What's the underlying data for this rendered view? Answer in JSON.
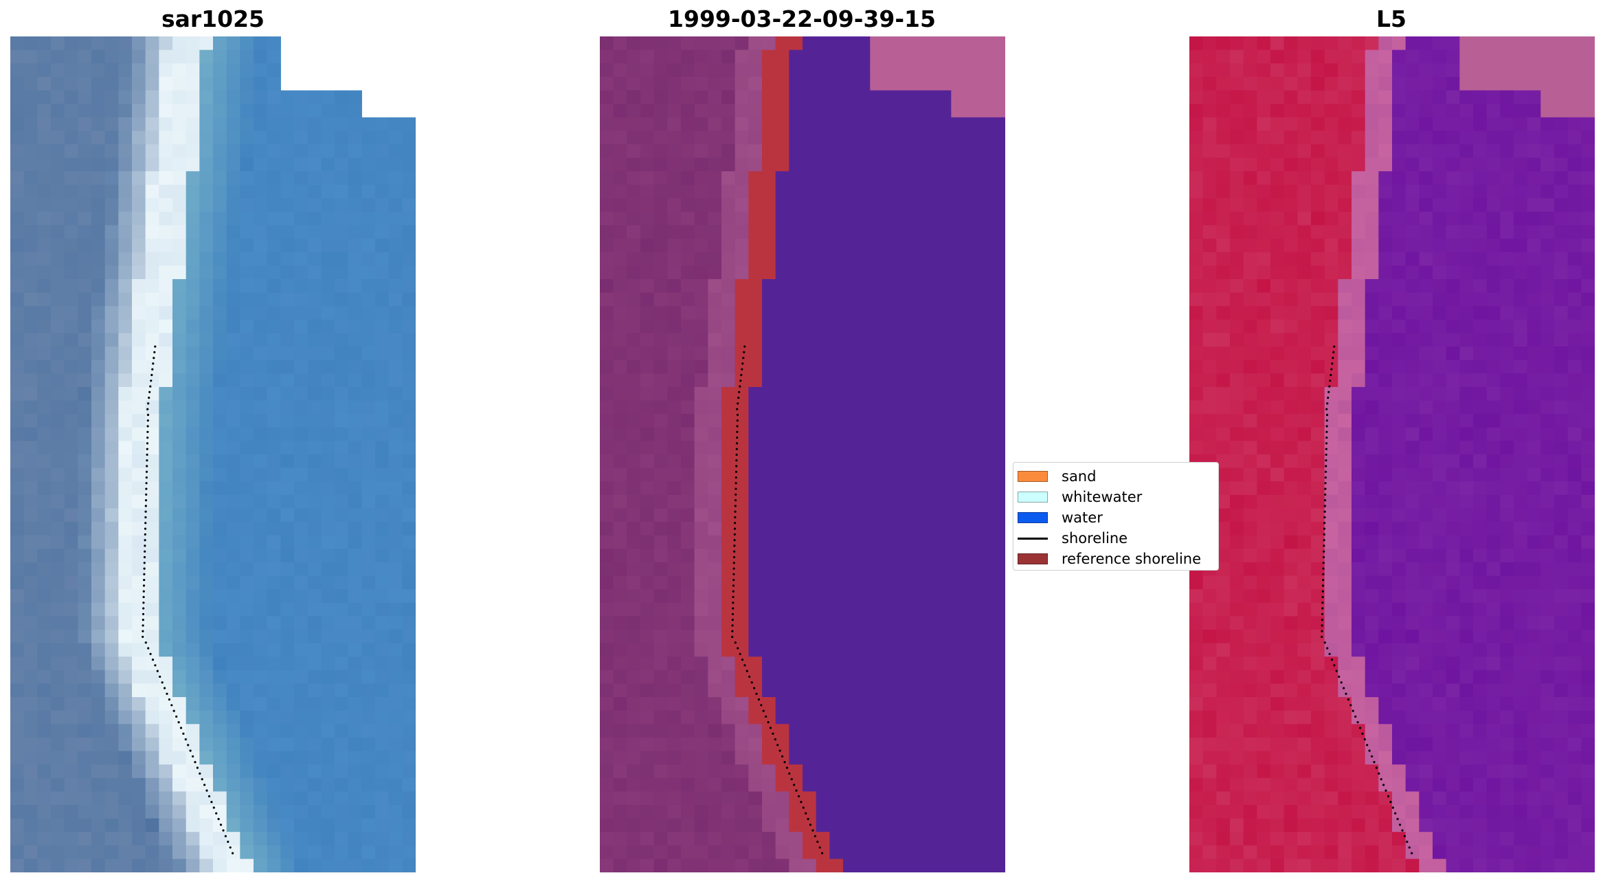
{
  "panels": [
    {
      "title": "sar1025",
      "image": "satellite-rgb-image"
    },
    {
      "title": "1999-03-22-09-39-15",
      "image": "classified-image"
    },
    {
      "title": "L5",
      "image": "index-image"
    }
  ],
  "legend": {
    "items": [
      {
        "label": "sand",
        "kind": "patch",
        "color": "#fb8b3c"
      },
      {
        "label": "whitewater",
        "kind": "patch",
        "color": "#ccffff"
      },
      {
        "label": "water",
        "kind": "patch",
        "color": "#0b5bef"
      },
      {
        "label": "shoreline",
        "kind": "line",
        "color": "#000000"
      },
      {
        "label": "reference shoreline",
        "kind": "patch",
        "color": "#9b3334"
      }
    ]
  }
}
